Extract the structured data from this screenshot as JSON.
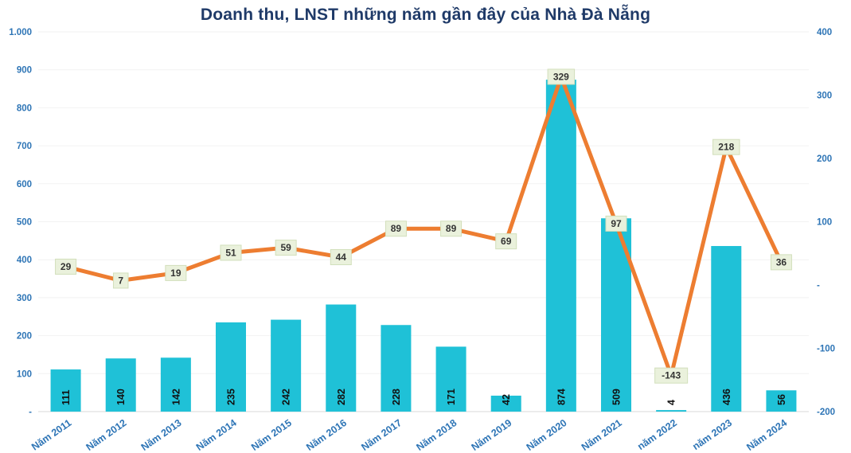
{
  "chart_data": {
    "type": "combo",
    "title": "Doanh thu, LNST những năm gần đây của Nhà Đà Nẵng",
    "categories": [
      "Năm 2011",
      "Năm 2012",
      "Năm 2013",
      "Năm 2014",
      "Năm 2015",
      "Năm 2016",
      "Năm 2017",
      "Năm 2018",
      "Năm 2019",
      "Năm 2020",
      "Năm 2021",
      "năm 2022",
      "năm 2023",
      "Năm 2024"
    ],
    "series": [
      {
        "name": "Doanh thu",
        "chart_type": "bar",
        "axis": "left",
        "color": "#1FC1D7",
        "values": [
          111,
          140,
          142,
          235,
          242,
          282,
          228,
          171,
          42,
          874,
          509,
          4,
          436,
          56
        ]
      },
      {
        "name": "LNST",
        "chart_type": "line",
        "axis": "right",
        "color": "#ED7D31",
        "values": [
          29,
          7,
          19,
          51,
          59,
          44,
          89,
          89,
          69,
          329,
          97,
          -143,
          218,
          36
        ]
      }
    ],
    "left_axis": {
      "min": 0,
      "max": 1000,
      "step": 100,
      "tick_labels": [
        "-",
        "100",
        "200",
        "300",
        "400",
        "500",
        "600",
        "700",
        "800",
        "900",
        "1.000"
      ]
    },
    "right_axis": {
      "min": -200,
      "max": 400,
      "step": 100,
      "tick_labels": [
        "-200",
        "-100",
        "-",
        "100",
        "200",
        "300",
        "400"
      ]
    },
    "legend_position": "none",
    "grid": true,
    "styles": {
      "title_color": "#1F3A68",
      "axis_label_color": "#2E75B6",
      "bar_label_color": "#111111",
      "line_label_bg": "#EAF1DC",
      "line_label_border": "#D2DFBB",
      "line_label_color": "#333333",
      "grid_color": "#F2F2F2",
      "axis_line_color": "#D9D9D9",
      "background": "#FFFFFF"
    }
  }
}
